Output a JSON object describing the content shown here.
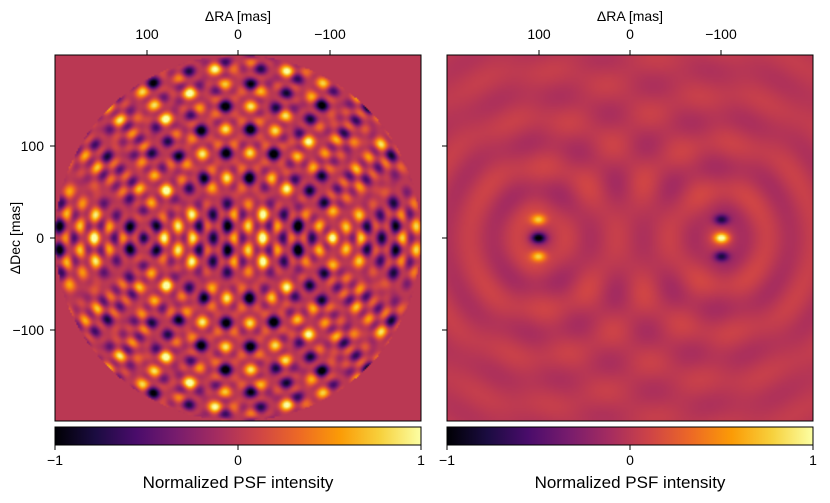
{
  "chart_data": [
    {
      "type": "heatmap",
      "title": "",
      "xlabel": "ΔRA [mas]",
      "xlabel_position": "top",
      "ylabel": "ΔDec [mas]",
      "x_axis": "inverted",
      "xlim": [
        200,
        -200
      ],
      "ylim": [
        -200,
        200
      ],
      "xticks": [
        100,
        0,
        -100
      ],
      "xtick_labels": [
        "100",
        "0",
        "−100"
      ],
      "yticks": [
        100,
        0,
        -100
      ],
      "ytick_labels": [
        "100",
        "0",
        "−100"
      ],
      "aperture": "circular, radius 200 mas",
      "colormap": "inferno",
      "clim": [
        -1,
        1
      ],
      "background_value": 0,
      "description_of_field": "interference fringe pattern of two point sources",
      "sources": [
        {
          "dra": 100,
          "ddec": 0,
          "center_value": -1
        },
        {
          "dra": -100,
          "ddec": 0,
          "center_value": 1
        }
      ],
      "colorbar": {
        "label": "Normalized PSF intensity",
        "ticks": [
          -1,
          0,
          1
        ],
        "tick_labels": [
          "−1",
          "0",
          "1"
        ],
        "orientation": "horizontal",
        "location": "bottom"
      }
    },
    {
      "type": "heatmap",
      "title": "",
      "xlabel": "ΔRA [mas]",
      "xlabel_position": "top",
      "ylabel": "",
      "x_axis": "inverted",
      "xlim": [
        200,
        -200
      ],
      "ylim": [
        -200,
        200
      ],
      "xticks": [
        100,
        0,
        -100
      ],
      "xtick_labels": [
        "100",
        "0",
        "−100"
      ],
      "yticks": [
        100,
        0,
        -100
      ],
      "ytick_labels": [],
      "colormap": "inferno",
      "clim": [
        -1,
        1
      ],
      "background_value": 0,
      "sources": [
        {
          "dra": 100,
          "ddec": 0,
          "center_value": -1,
          "side_lobes_value": 0.7
        },
        {
          "dra": -100,
          "ddec": 0,
          "center_value": 1,
          "side_lobes_value": -0.7
        }
      ],
      "colorbar": {
        "label": "Normalized PSF intensity",
        "ticks": [
          -1,
          0,
          1
        ],
        "tick_labels": [
          "−1",
          "0",
          "1"
        ],
        "orientation": "horizontal",
        "location": "bottom"
      }
    }
  ],
  "colors": {
    "inferno_stops": [
      "#000004",
      "#1b0c41",
      "#4a0c6b",
      "#781c6d",
      "#a52c60",
      "#cf4446",
      "#ed6925",
      "#fb9b06",
      "#f7d13d",
      "#fcffa4"
    ]
  }
}
